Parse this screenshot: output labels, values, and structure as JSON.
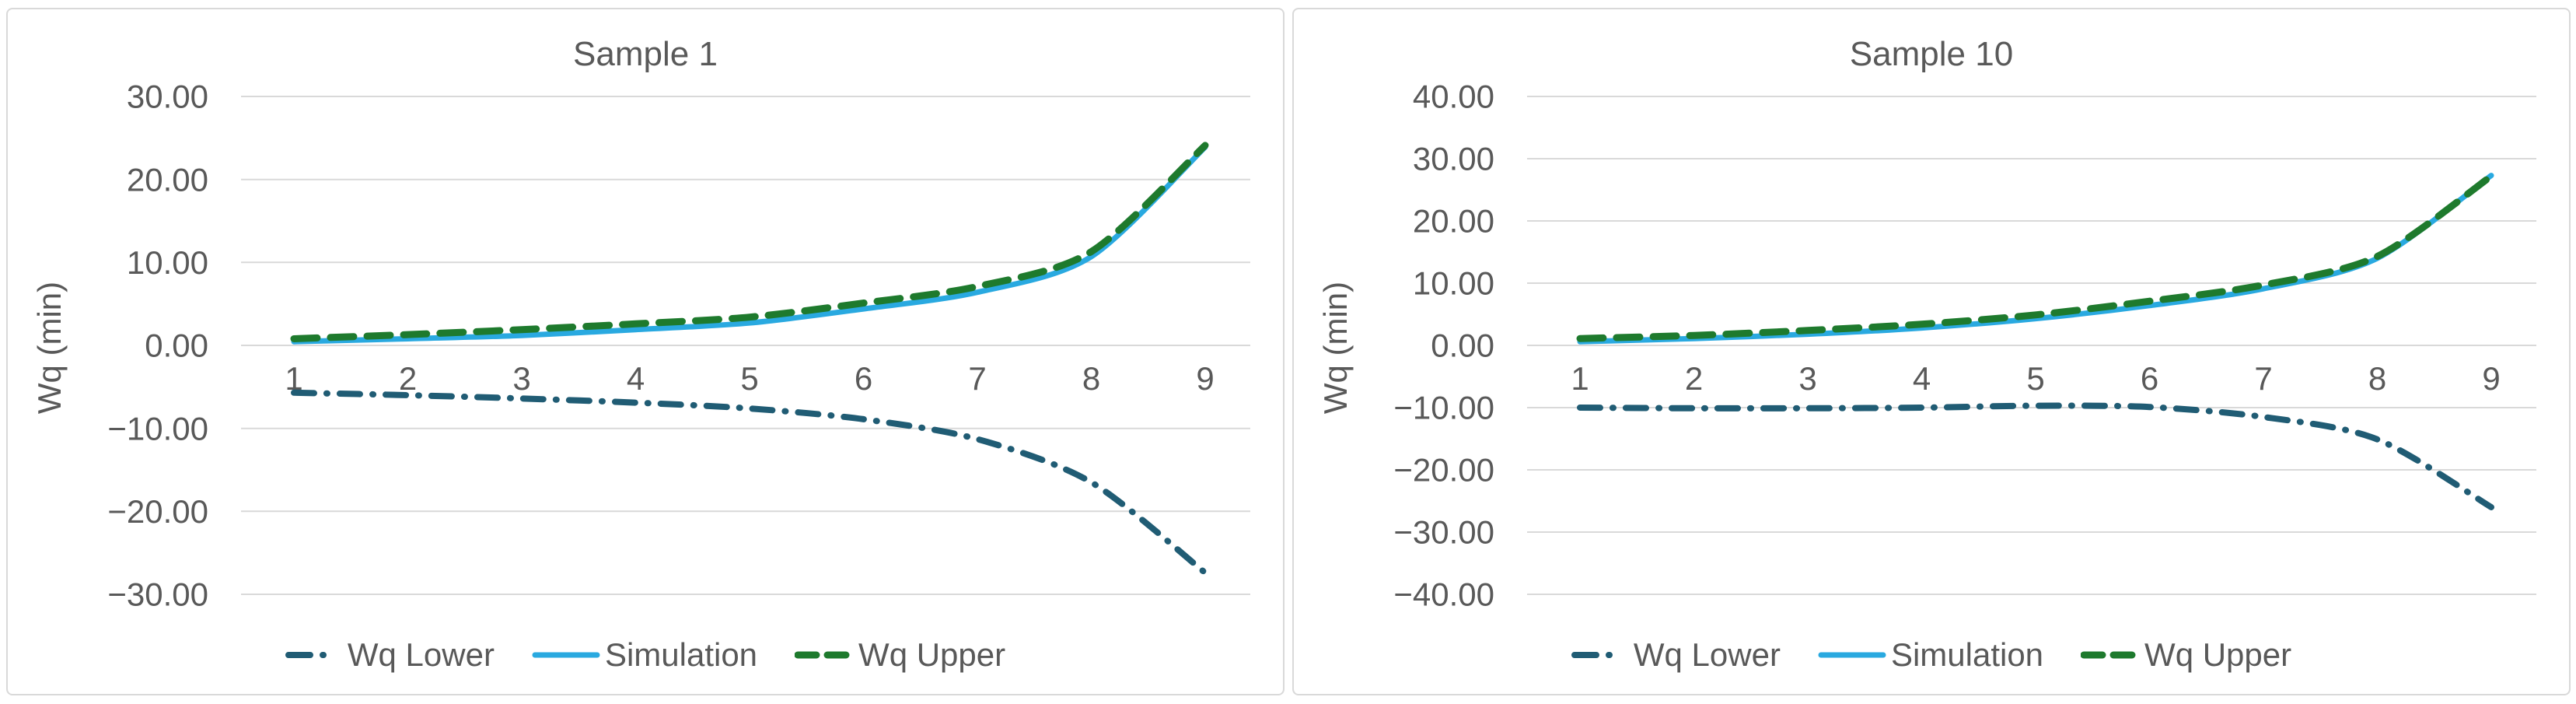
{
  "page": {
    "background": "#FFFFFF"
  },
  "colors": {
    "text": "#595959",
    "gridline": "#D9D9D9",
    "panel_border": "#D9D9D9",
    "wq_lower": "#205C74",
    "simulation": "#29A9E0",
    "wq_upper": "#1E7A2D"
  },
  "chart_data": [
    {
      "type": "line",
      "title": "Sample 1",
      "ylabel": "Wq (min)",
      "x": [
        1,
        2,
        3,
        4,
        5,
        6,
        7,
        8,
        9
      ],
      "xtick_labels": [
        "1",
        "2",
        "3",
        "4",
        "5",
        "6",
        "7",
        "8",
        "9"
      ],
      "ylim": [
        -30,
        30
      ],
      "yticks": [
        30,
        20,
        10,
        0,
        -10,
        -20,
        -30
      ],
      "ytick_labels": [
        "30.00",
        "20.00",
        "10.00",
        "0.00",
        "−10.00",
        "−20.00",
        "−30.00"
      ],
      "grid": true,
      "legend_position": "bottom",
      "series": [
        {
          "name": "Wq Lower",
          "style": "dashdot",
          "color": "#205C74",
          "values": [
            -5.7,
            -6.0,
            -6.4,
            -6.9,
            -7.6,
            -8.9,
            -11.3,
            -16.5,
            -27.4
          ]
        },
        {
          "name": "Simulation",
          "style": "solid",
          "color": "#29A9E0",
          "values": [
            0.45,
            0.8,
            1.2,
            1.9,
            2.7,
            4.4,
            6.4,
            10.7,
            23.9
          ]
        },
        {
          "name": "Wq Upper",
          "style": "dashed",
          "color": "#1E7A2D",
          "values": [
            0.8,
            1.3,
            1.9,
            2.6,
            3.4,
            5.1,
            7.1,
            11.3,
            24.1
          ]
        }
      ]
    },
    {
      "type": "line",
      "title": "Sample 10",
      "ylabel": "Wq (min)",
      "x": [
        1,
        2,
        3,
        4,
        5,
        6,
        7,
        8,
        9
      ],
      "xtick_labels": [
        "1",
        "2",
        "3",
        "4",
        "5",
        "6",
        "7",
        "8",
        "9"
      ],
      "ylim": [
        -40,
        40
      ],
      "yticks": [
        40,
        30,
        20,
        10,
        0,
        -10,
        -20,
        -30,
        -40
      ],
      "ytick_labels": [
        "40.00",
        "30.00",
        "20.00",
        "10.00",
        "0.00",
        "−10.00",
        "−20.00",
        "−30.00",
        "−40.00"
      ],
      "grid": true,
      "legend_position": "bottom",
      "series": [
        {
          "name": "Wq Lower",
          "style": "dashdot",
          "color": "#205C74",
          "values": [
            -10.0,
            -10.1,
            -10.1,
            -10.0,
            -9.7,
            -9.9,
            -11.5,
            -15.1,
            -26.0
          ]
        },
        {
          "name": "Simulation",
          "style": "solid",
          "color": "#29A9E0",
          "values": [
            0.6,
            1.1,
            1.8,
            2.8,
            4.3,
            6.4,
            9.1,
            14.0,
            27.3
          ]
        },
        {
          "name": "Wq Upper",
          "style": "dashed",
          "color": "#1E7A2D",
          "values": [
            1.1,
            1.6,
            2.4,
            3.4,
            4.9,
            7.1,
            9.7,
            14.3,
            27.2
          ]
        }
      ]
    }
  ]
}
